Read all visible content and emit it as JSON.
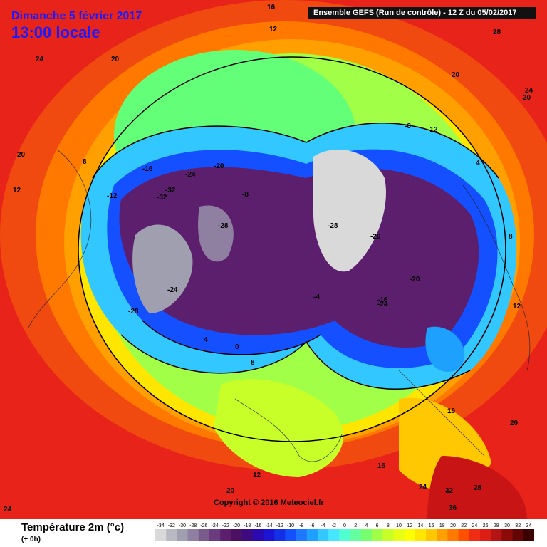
{
  "header": {
    "date": "Dimanche 5 février 2017",
    "local_time": "13:00 locale",
    "model": "Ensemble GEFS  (Run de contrôle)  -  12 Z du 05/02/2017"
  },
  "copyright": "Copyright © 2016 Meteociel.fr",
  "legend": {
    "parameter": "Température 2m (°c)",
    "lead_time": "(+ 0h)",
    "scale_labels": [
      "-34",
      "-32",
      "-30",
      "-28",
      "-26",
      "-24",
      "-22",
      "-20",
      "-18",
      "-16",
      "-14",
      "-12",
      "-10",
      "-8",
      "-6",
      "-4",
      "-2",
      "0",
      "2",
      "4",
      "6",
      "8",
      "10",
      "12",
      "14",
      "16",
      "18",
      "20",
      "22",
      "24",
      "26",
      "28",
      "30",
      "32",
      "34"
    ],
    "scale_colors": [
      "#d9d9d9",
      "#b9b9c4",
      "#9f9fb0",
      "#8f7fa0",
      "#7a5c8c",
      "#6a3c7e",
      "#5c1f6e",
      "#4b1060",
      "#3d0a80",
      "#2a0ab0",
      "#1c14d4",
      "#1430e6",
      "#1450ff",
      "#1e78ff",
      "#1ea0ff",
      "#32c8ff",
      "#46e6ff",
      "#50ffd2",
      "#64ffa0",
      "#78ff6e",
      "#a0ff46",
      "#c8ff28",
      "#e6ff14",
      "#ffff00",
      "#ffe600",
      "#ffc800",
      "#ffa000",
      "#ff7800",
      "#ff5000",
      "#f02d14",
      "#dc1e14",
      "#b41414",
      "#8c0a0a",
      "#640505",
      "#3c0000"
    ]
  },
  "map_labels": [
    "16",
    "12",
    "28",
    "24",
    "20",
    "20",
    "24",
    "20",
    "20",
    "8",
    "12",
    "-8",
    "-16",
    "-20",
    "-24",
    "-28",
    "-32",
    "-12",
    "-4",
    "4",
    "0",
    "8",
    "12",
    "-16",
    "-20",
    "-24",
    "-28",
    "-12",
    "-8",
    "4",
    "16",
    "20",
    "24",
    "28",
    "32",
    "36",
    "16",
    "20",
    "24",
    "12",
    "8",
    "-32",
    "-28",
    "-24",
    "-20"
  ]
}
